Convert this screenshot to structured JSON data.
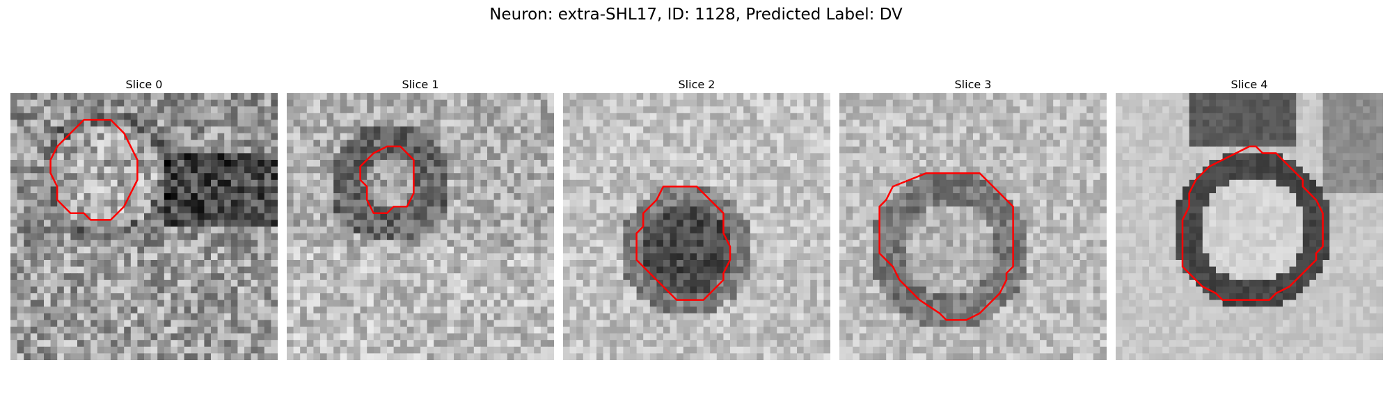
{
  "figure": {
    "title": "Neuron: extra-SHL17, ID: 1128, Predicted Label: DV"
  },
  "panels": [
    {
      "title": "Slice 0",
      "seed": 11,
      "texture": "noisy-dark-right",
      "contour": [
        [
          11,
          4
        ],
        [
          15,
          4
        ],
        [
          16,
          5
        ],
        [
          17,
          6
        ],
        [
          18,
          8
        ],
        [
          19,
          10
        ],
        [
          19,
          13
        ],
        [
          18,
          15
        ],
        [
          17,
          17
        ],
        [
          15,
          19
        ],
        [
          12,
          19
        ],
        [
          11,
          18
        ],
        [
          9,
          18
        ],
        [
          7,
          16
        ],
        [
          7,
          14
        ],
        [
          6,
          12
        ],
        [
          6,
          10
        ],
        [
          7,
          8
        ],
        [
          9,
          6
        ]
      ]
    },
    {
      "title": "Slice 1",
      "seed": 23,
      "texture": "noisy-ring",
      "contour": [
        [
          15,
          8
        ],
        [
          17,
          8
        ],
        [
          19,
          10
        ],
        [
          19,
          15
        ],
        [
          18,
          17
        ],
        [
          16,
          17
        ],
        [
          15,
          18
        ],
        [
          13,
          18
        ],
        [
          12,
          16
        ],
        [
          12,
          14
        ],
        [
          11,
          13
        ],
        [
          11,
          11
        ],
        [
          13,
          9
        ]
      ]
    },
    {
      "title": "Slice 2",
      "seed": 37,
      "texture": "light-dark-center",
      "contour": [
        [
          15,
          14
        ],
        [
          20,
          14
        ],
        [
          22,
          16
        ],
        [
          24,
          18
        ],
        [
          24,
          21
        ],
        [
          25,
          23
        ],
        [
          25,
          25
        ],
        [
          24,
          27
        ],
        [
          24,
          28
        ],
        [
          22,
          30
        ],
        [
          21,
          31
        ],
        [
          17,
          31
        ],
        [
          16,
          30
        ],
        [
          14,
          28
        ],
        [
          12,
          26
        ],
        [
          11,
          25
        ],
        [
          11,
          21
        ],
        [
          12,
          20
        ],
        [
          12,
          18
        ],
        [
          14,
          16
        ]
      ]
    },
    {
      "title": "Slice 3",
      "seed": 53,
      "texture": "light-dark-ring",
      "contour": [
        [
          13,
          12
        ],
        [
          21,
          12
        ],
        [
          23,
          14
        ],
        [
          24,
          15
        ],
        [
          26,
          17
        ],
        [
          26,
          26
        ],
        [
          25,
          27
        ],
        [
          25,
          28
        ],
        [
          24,
          30
        ],
        [
          21,
          33
        ],
        [
          19,
          34
        ],
        [
          16,
          34
        ],
        [
          15,
          33
        ],
        [
          12,
          31
        ],
        [
          9,
          28
        ],
        [
          8,
          26
        ],
        [
          6,
          24
        ],
        [
          6,
          17
        ],
        [
          7,
          16
        ],
        [
          8,
          14
        ]
      ]
    },
    {
      "title": "Slice 4",
      "seed": 71,
      "texture": "thick-ring",
      "contour": [
        [
          20,
          8
        ],
        [
          21,
          8
        ],
        [
          22,
          9
        ],
        [
          24,
          9
        ],
        [
          26,
          11
        ],
        [
          28,
          13
        ],
        [
          28,
          14
        ],
        [
          29,
          15
        ],
        [
          30,
          16
        ],
        [
          31,
          18
        ],
        [
          31,
          23
        ],
        [
          30,
          24
        ],
        [
          30,
          25
        ],
        [
          28,
          27
        ],
        [
          26,
          29
        ],
        [
          24,
          30
        ],
        [
          23,
          31
        ],
        [
          16,
          31
        ],
        [
          15,
          30
        ],
        [
          13,
          29
        ],
        [
          11,
          27
        ],
        [
          10,
          26
        ],
        [
          10,
          19
        ],
        [
          11,
          17
        ],
        [
          11,
          15
        ],
        [
          12,
          13
        ],
        [
          14,
          11
        ],
        [
          16,
          10
        ],
        [
          18,
          9
        ]
      ]
    }
  ],
  "colors": {
    "contour": "#ff0000"
  }
}
